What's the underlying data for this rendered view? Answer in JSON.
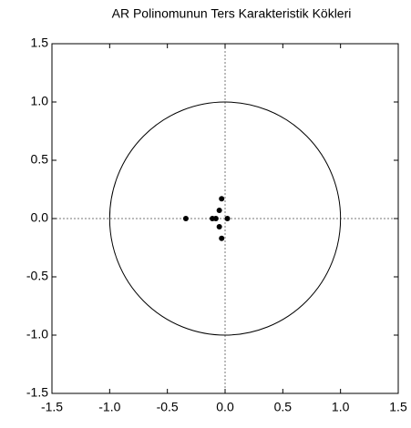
{
  "chart_data": {
    "type": "scatter",
    "title": "AR Polinomunun Ters Karakteristik Kökleri",
    "x": [
      -0.34,
      -0.11,
      -0.08,
      -0.05,
      -0.03,
      0.02,
      -0.05,
      -0.03
    ],
    "values": [
      0.0,
      0.0,
      0.0,
      0.07,
      0.17,
      0.0,
      -0.07,
      -0.17
    ],
    "color": "#000000",
    "xlim": [
      -1.5,
      1.5
    ],
    "xticks": [
      -1.5,
      {
        "value": -1.0,
        "label": "-1.0"
      },
      -0.5,
      {
        "value": 0.0,
        "label": "0.0"
      },
      0.5,
      {
        "value": 1.0,
        "label": "1.0"
      },
      1.5
    ],
    "ylim": [
      -1.5,
      1.5
    ],
    "yticks": [
      -1.5,
      {
        "value": -1.0,
        "label": "-1.0"
      },
      -0.5,
      {
        "value": 0.0,
        "label": "0.0"
      },
      0.5,
      {
        "value": 1.0,
        "label": "1.0"
      },
      1.5
    ]
  }
}
